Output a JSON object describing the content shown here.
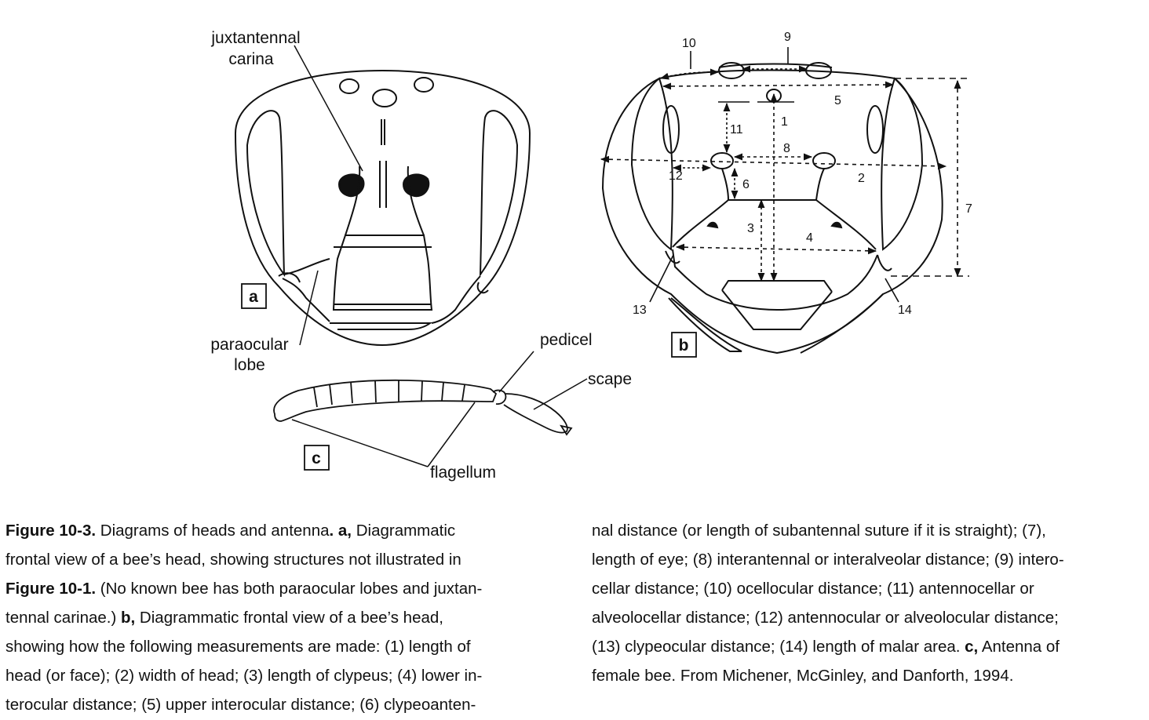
{
  "figure": {
    "panel_a": {
      "letter": "a",
      "label_juxtantennal_1": "juxtantennal",
      "label_juxtantennal_2": "carina",
      "label_paraocular_1": "paraocular",
      "label_paraocular_2": "lobe"
    },
    "panel_b": {
      "letter": "b",
      "measure_numbers": [
        "1",
        "2",
        "3",
        "4",
        "5",
        "6",
        "7",
        "8",
        "9",
        "10",
        "11",
        "12",
        "13",
        "14"
      ]
    },
    "panel_c": {
      "letter": "c",
      "label_pedicel": "pedicel",
      "label_scape": "scape",
      "label_flagellum": "flagellum"
    }
  },
  "caption": {
    "left_lines": [
      [
        {
          "t": "Figure 10-3.",
          "b": true
        },
        {
          "t": " Diagrams of heads and antenna",
          "b": false
        },
        {
          "t": ". a,",
          "b": true
        },
        {
          "t": " Diagrammatic",
          "b": false
        }
      ],
      [
        {
          "t": "frontal view of a bee’s head, showing structures not illustrated in",
          "b": false
        }
      ],
      [
        {
          "t": "Figure 10-1.",
          "b": true
        },
        {
          "t": " (No known bee has both paraocular lobes and juxtan-",
          "b": false
        }
      ],
      [
        {
          "t": "tennal carinae.) ",
          "b": false
        },
        {
          "t": "b,",
          "b": true
        },
        {
          "t": " Diagrammatic frontal view of a bee’s head,",
          "b": false
        }
      ],
      [
        {
          "t": "showing how the following measurements are made: (1) length of",
          "b": false
        }
      ],
      [
        {
          "t": "head (or face); (2) width of head; (3) length of clypeus; (4) lower in-",
          "b": false
        }
      ],
      [
        {
          "t": "terocular distance; (5) upper interocular distance; (6) clypeoanten-",
          "b": false
        }
      ]
    ],
    "right_lines": [
      [
        {
          "t": "nal distance (or length of subantennal suture if it is straight); (7),",
          "b": false
        }
      ],
      [
        {
          "t": "length of eye; (8) interantennal or interalveolar distance; (9) intero-",
          "b": false
        }
      ],
      [
        {
          "t": "cellar distance; (10) ocellocular distance; (11) antennocellar or",
          "b": false
        }
      ],
      [
        {
          "t": "alveolocellar distance; (12) antennocular or alveolocular distance;",
          "b": false
        }
      ],
      [
        {
          "t": "(13) clypeocular distance; (14) length of malar area. ",
          "b": false
        },
        {
          "t": "c,",
          "b": true
        },
        {
          "t": " Antenna of",
          "b": false
        }
      ],
      [
        {
          "t": "female bee. From Michener, McGinley, and Danforth, 1994.",
          "b": false
        }
      ]
    ]
  }
}
